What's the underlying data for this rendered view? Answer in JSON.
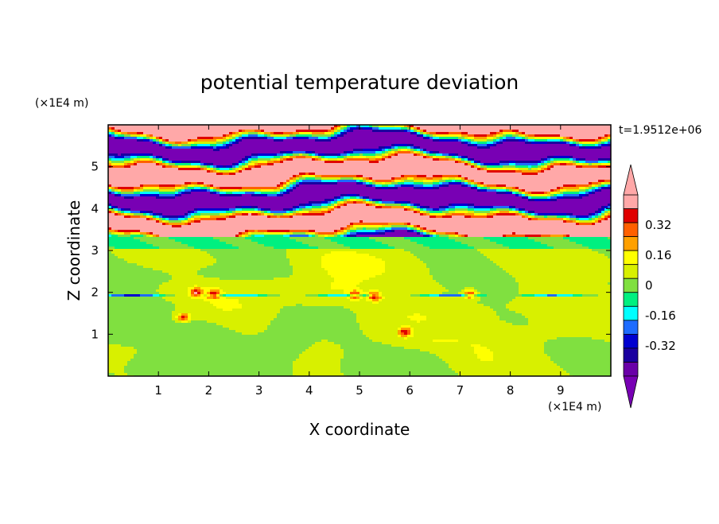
{
  "chart_data": {
    "type": "heatmap",
    "title": "potential temperature deviation",
    "xlabel": "X coordinate",
    "ylabel": "Z coordinate",
    "x_unit": "(×1E4 m)",
    "y_unit": "(×1E4 m)",
    "time_label": "t=1.9512e+06",
    "xlim": [
      0,
      10
    ],
    "ylim": [
      0,
      6
    ],
    "x_ticks": [
      1,
      2,
      3,
      4,
      5,
      6,
      7,
      8,
      9
    ],
    "y_ticks": [
      1,
      2,
      3,
      4,
      5
    ],
    "colorbar": {
      "levels": [
        -0.48,
        -0.4,
        -0.32,
        -0.24,
        -0.16,
        -0.08,
        0,
        0.08,
        0.16,
        0.24,
        0.32,
        0.4,
        0.48
      ],
      "labels": [
        "-0.32",
        "-0.16",
        "0",
        "0.16",
        "0.32"
      ],
      "label_values": [
        -0.32,
        -0.16,
        0,
        0.16,
        0.32
      ],
      "colors": [
        "#6a00a8",
        "#1a00a0",
        "#0000d0",
        "#1e6cff",
        "#00ffff",
        "#00f080",
        "#80e040",
        "#d8f000",
        "#ffff00",
        "#ffa000",
        "#ff6000",
        "#e00000",
        "#ffa8a8"
      ],
      "min_extend_color": "#7800b4",
      "max_extend_color": "#ffa8a8"
    },
    "bands": [
      {
        "z": [
          0.0,
          1.2
        ],
        "value": 0.04
      },
      {
        "z": [
          1.2,
          2.0
        ],
        "value": 0.02
      },
      {
        "z": [
          2.0,
          3.05
        ],
        "value": 0.0
      },
      {
        "z": [
          3.05,
          3.35
        ],
        "value": -0.09
      },
      {
        "z": [
          3.35,
          6.0
        ],
        "value": "alternating"
      }
    ]
  }
}
